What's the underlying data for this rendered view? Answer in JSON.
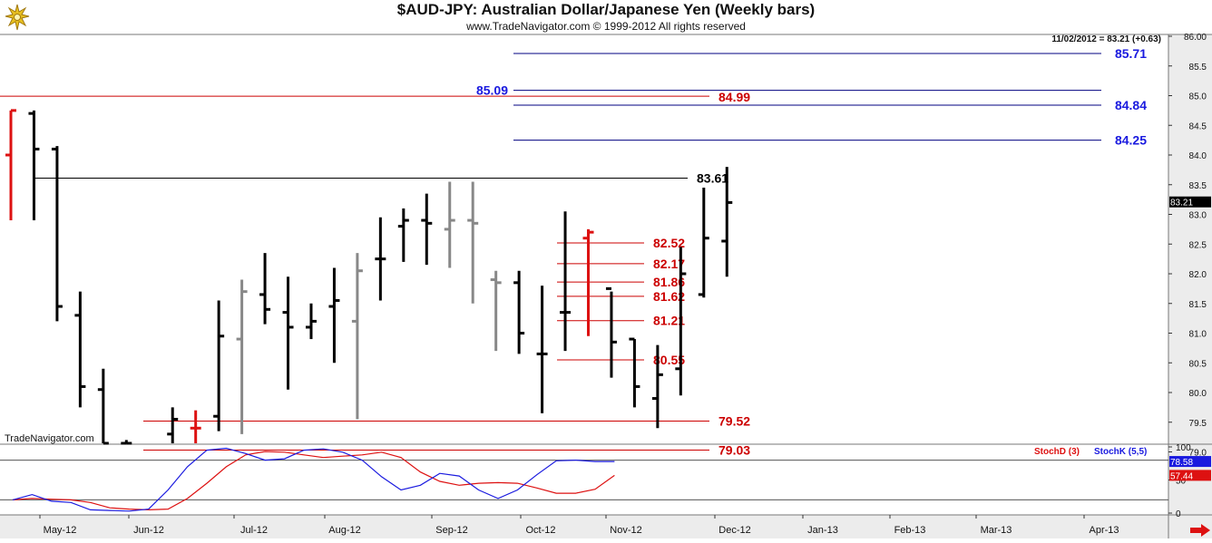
{
  "header": {
    "title": "$AUD-JPY:  Australian Dollar/Japanese Yen  (Weekly bars)",
    "copyright": "www.TradeNavigator.com © 1999-2012 All rights reserved",
    "logo_icon": "trade-navigator-logo-icon"
  },
  "watermark": "TradeNavigator.com",
  "last_quote": "11/02/2012 = 83.21 (+0.63)",
  "current_price_label": "83.21",
  "colors": {
    "up_bar": "#000000",
    "down_bar": "#dd1111",
    "neutral_bar": "#888888",
    "support_line": "#cc0000",
    "projection_line": "#000080",
    "projection_text": "#1a1adf",
    "stoch_d": "#dd1111",
    "stoch_k": "#1a1adf"
  },
  "chart_data": [
    {
      "type": "bar",
      "subtype": "ohlc",
      "title": "$AUD-JPY:  Australian Dollar/Japanese Yen  (Weekly bars)",
      "x_tick_labels": [
        "May-12",
        "Jun-12",
        "Jul-12",
        "Aug-12",
        "Sep-12",
        "Oct-12",
        "Nov-12",
        "Dec-12",
        "Jan-13",
        "Feb-13",
        "Mar-13",
        "Apr-13"
      ],
      "y_tick_labels": [
        "79.0",
        "79.5",
        "80.0",
        "80.5",
        "81.0",
        "81.5",
        "82.0",
        "82.5",
        "83.0",
        "83.5",
        "84.0",
        "84.5",
        "85.0",
        "85.5",
        "86.00"
      ],
      "ylim": [
        78.95,
        86.0
      ],
      "y_axis_side": "right",
      "grid": false,
      "bars": [
        {
          "week": 0,
          "open": 84.0,
          "high": 84.75,
          "low": 82.9,
          "close": 84.75,
          "color": "red"
        },
        {
          "week": 2,
          "open": 84.7,
          "high": 84.75,
          "low": 82.9,
          "close": 84.1,
          "color": "black"
        },
        {
          "week": 4,
          "open": 84.1,
          "high": 84.15,
          "low": 81.2,
          "close": 81.45,
          "color": "black"
        },
        {
          "week": 6,
          "open": 81.3,
          "high": 81.7,
          "low": 79.75,
          "close": 80.1,
          "color": "black"
        },
        {
          "week": 8,
          "open": 80.05,
          "high": 80.4,
          "low": 78.8,
          "close": 79.0,
          "color": "black"
        },
        {
          "week": 10,
          "open": 79.05,
          "high": 79.2,
          "low": 78.6,
          "close": 78.8,
          "color": "black"
        },
        {
          "week": 14,
          "open": 79.3,
          "high": 79.75,
          "low": 78.95,
          "close": 79.55,
          "color": "black"
        },
        {
          "week": 16,
          "open": 79.4,
          "high": 79.7,
          "low": 78.95,
          "close": 79.4,
          "color": "red"
        },
        {
          "week": 18,
          "open": 79.6,
          "high": 81.55,
          "low": 79.35,
          "close": 80.95,
          "color": "black"
        },
        {
          "week": 20,
          "open": 80.9,
          "high": 81.9,
          "low": 79.3,
          "close": 81.7,
          "color": "gray"
        },
        {
          "week": 22,
          "open": 81.65,
          "high": 82.35,
          "low": 81.15,
          "close": 81.4,
          "color": "black"
        },
        {
          "week": 24,
          "open": 81.35,
          "high": 81.95,
          "low": 80.05,
          "close": 81.1,
          "color": "black"
        },
        {
          "week": 26,
          "open": 81.1,
          "high": 81.5,
          "low": 80.9,
          "close": 81.2,
          "color": "black"
        },
        {
          "week": 28,
          "open": 81.45,
          "high": 82.1,
          "low": 80.5,
          "close": 81.55,
          "color": "black"
        },
        {
          "week": 30,
          "open": 81.2,
          "high": 82.35,
          "low": 79.55,
          "close": 82.05,
          "color": "gray"
        },
        {
          "week": 32,
          "open": 82.25,
          "high": 82.95,
          "low": 81.55,
          "close": 82.25,
          "color": "black"
        },
        {
          "week": 34,
          "open": 82.8,
          "high": 83.1,
          "low": 82.2,
          "close": 82.9,
          "color": "black"
        },
        {
          "week": 36,
          "open": 82.9,
          "high": 83.35,
          "low": 82.15,
          "close": 82.85,
          "color": "black"
        },
        {
          "week": 38,
          "open": 82.75,
          "high": 83.55,
          "low": 82.1,
          "close": 82.9,
          "color": "gray"
        },
        {
          "week": 40,
          "open": 82.9,
          "high": 83.55,
          "low": 81.5,
          "close": 82.85,
          "color": "gray"
        },
        {
          "week": 42,
          "open": 81.9,
          "high": 82.05,
          "low": 80.7,
          "close": 81.85,
          "color": "gray"
        },
        {
          "week": 44,
          "open": 81.85,
          "high": 82.05,
          "low": 80.65,
          "close": 81.0,
          "color": "black"
        },
        {
          "week": 46,
          "open": 80.65,
          "high": 81.8,
          "low": 79.65,
          "close": 80.65,
          "color": "black"
        },
        {
          "week": 48,
          "open": 81.35,
          "high": 83.05,
          "low": 80.7,
          "close": 81.35,
          "color": "black"
        },
        {
          "week": 50,
          "open": 82.6,
          "high": 82.75,
          "low": 80.95,
          "close": 82.7,
          "color": "red"
        },
        {
          "week": 52,
          "open": 81.75,
          "high": 81.7,
          "low": 80.25,
          "close": 80.85,
          "color": "black"
        },
        {
          "week": 54,
          "open": 80.9,
          "high": 80.9,
          "low": 79.75,
          "close": 80.1,
          "color": "black"
        },
        {
          "week": 56,
          "open": 79.9,
          "high": 80.8,
          "low": 79.4,
          "close": 80.3,
          "color": "black"
        },
        {
          "week": 58,
          "open": 80.4,
          "high": 82.45,
          "low": 79.95,
          "close": 82.0,
          "color": "black"
        },
        {
          "week": 60,
          "open": 81.65,
          "high": 83.45,
          "low": 81.6,
          "close": 82.6,
          "color": "black"
        },
        {
          "week": 62,
          "open": 82.55,
          "high": 83.8,
          "low": 81.95,
          "close": 83.2,
          "color": "black"
        }
      ],
      "levels": [
        {
          "value": 85.71,
          "label": "85.71",
          "kind": "projection",
          "label_side": "right"
        },
        {
          "value": 85.09,
          "label": "85.09",
          "kind": "projection",
          "label_side": "left"
        },
        {
          "value": 84.99,
          "label": "84.99",
          "kind": "support"
        },
        {
          "value": 84.84,
          "label": "84.84",
          "kind": "projection",
          "label_side": "right"
        },
        {
          "value": 84.25,
          "label": "84.25",
          "kind": "projection",
          "label_side": "right"
        },
        {
          "value": 83.61,
          "label": "83.61",
          "kind": "resistance"
        },
        {
          "value": 82.52,
          "label": "82.52",
          "kind": "support"
        },
        {
          "value": 82.17,
          "label": "82.17",
          "kind": "support"
        },
        {
          "value": 81.86,
          "label": "81.86",
          "kind": "support"
        },
        {
          "value": 81.62,
          "label": "81.62",
          "kind": "support"
        },
        {
          "value": 81.21,
          "label": "81.21",
          "kind": "support"
        },
        {
          "value": 80.55,
          "label": "80.55",
          "kind": "support"
        },
        {
          "value": 79.52,
          "label": "79.52",
          "kind": "support"
        },
        {
          "value": 79.03,
          "label": "79.03",
          "kind": "support"
        }
      ]
    },
    {
      "type": "line",
      "ylim": [
        0,
        100
      ],
      "y_tick_labels": [
        "100",
        "50",
        "0"
      ],
      "reference_lines": [
        80,
        20
      ],
      "legend_placement": "top-right",
      "series": [
        {
          "name": "StochD (3)",
          "color": "#dd1111",
          "last_label": "57.44",
          "values": [
            20,
            22,
            21,
            20,
            16,
            8,
            6,
            5,
            6,
            22,
            45,
            70,
            88,
            93,
            92,
            88,
            84,
            86,
            88,
            92,
            84,
            62,
            48,
            42,
            45,
            46,
            45,
            38,
            30,
            30,
            36,
            57
          ]
        },
        {
          "name": "StochK (5,5)",
          "color": "#1a1adf",
          "last_label": "78.58",
          "values": [
            20,
            28,
            18,
            16,
            5,
            4,
            3,
            6,
            35,
            70,
            95,
            98,
            90,
            80,
            82,
            95,
            97,
            92,
            80,
            55,
            35,
            42,
            60,
            56,
            35,
            22,
            35,
            58,
            79,
            80,
            78,
            78
          ]
        }
      ]
    }
  ]
}
